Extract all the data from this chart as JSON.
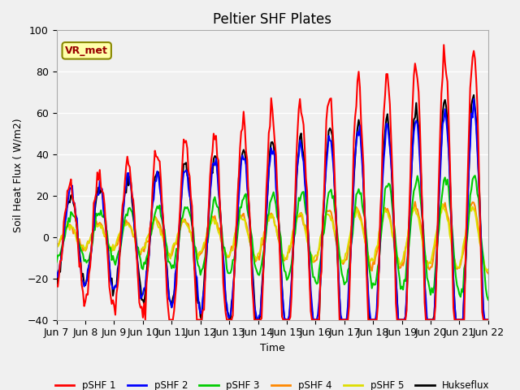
{
  "title": "Peltier SHF Plates",
  "ylabel": "Soil Heat Flux ( W/m2)",
  "xlabel": "Time",
  "ylim": [
    -40,
    100
  ],
  "background_color": "#f0f0f0",
  "plot_bg": "#f0f0f0",
  "grid_color": "white",
  "vr_met_label": "VR_met",
  "series_colors": {
    "pSHF 1": "#ff0000",
    "pSHF 2": "#0000ff",
    "pSHF 3": "#00cc00",
    "pSHF 4": "#ff8800",
    "pSHF 5": "#dddd00",
    "Hukseflux": "#000000"
  },
  "series_linewidths": {
    "pSHF 1": 1.5,
    "pSHF 2": 1.5,
    "pSHF 3": 1.5,
    "pSHF 4": 1.5,
    "pSHF 5": 1.5,
    "Hukseflux": 1.5
  },
  "x_tick_labels": [
    "Jun 7",
    "Jun 8",
    "Jun 9",
    "Jun 10",
    "Jun 11",
    "Jun 12",
    "Jun 13",
    "Jun 14",
    "Jun 15",
    "Jun 16",
    "Jun 17",
    "Jun 18",
    "Jun 19",
    "Jun 20",
    "Jun 21",
    "Jun 22"
  ],
  "x_tick_positions": [
    0,
    24,
    48,
    72,
    96,
    120,
    144,
    168,
    192,
    216,
    240,
    264,
    288,
    312,
    336,
    360
  ]
}
